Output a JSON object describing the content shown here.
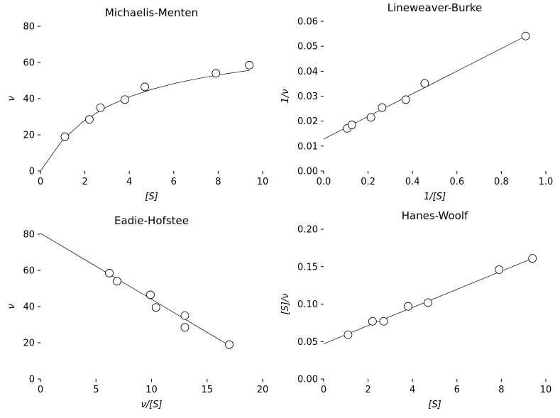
{
  "chart_data": [
    {
      "type": "scatter",
      "title": "Michaelis-Menten",
      "xlabel": "[S]",
      "ylabel": "ν",
      "xlim": [
        0,
        10
      ],
      "ylim": [
        0,
        80
      ],
      "xticks": [
        "0",
        "2",
        "4",
        "6",
        "8",
        "10"
      ],
      "yticks": [
        "0",
        "20",
        "40",
        "60",
        "80"
      ],
      "grid": false,
      "points": {
        "x": [
          1.1,
          2.2,
          2.7,
          3.8,
          4.7,
          7.9,
          9.4
        ],
        "y": [
          19,
          28.5,
          35,
          39.5,
          46.5,
          54,
          58.5
        ]
      },
      "fit": {
        "model": "hyperbola",
        "x": [
          0,
          1,
          2,
          3,
          4,
          5,
          6,
          7,
          8,
          9,
          9.4
        ],
        "y": [
          0,
          17.3,
          28.2,
          35.6,
          41.0,
          45.1,
          48.3,
          50.9,
          53.1,
          54.9,
          55.6
        ]
      }
    },
    {
      "type": "scatter",
      "title": "Lineweaver-Burke",
      "xlabel": "1/[S]",
      "ylabel": "1/ν",
      "xlim": [
        0,
        1.0
      ],
      "ylim": [
        0,
        0.06
      ],
      "xticks": [
        "0.0",
        "0.2",
        "0.4",
        "0.6",
        "0.8",
        "1.0"
      ],
      "yticks": [
        "0.00",
        "0.01",
        "0.02",
        "0.03",
        "0.04",
        "0.05",
        "0.06"
      ],
      "grid": false,
      "points": {
        "x": [
          0.106,
          0.127,
          0.213,
          0.263,
          0.37,
          0.455,
          0.909
        ],
        "y": [
          0.0171,
          0.0185,
          0.0215,
          0.0254,
          0.0286,
          0.0351,
          0.0541
        ]
      },
      "fit": {
        "model": "line",
        "x": [
          0,
          0.91
        ],
        "y": [
          0.0128,
          0.0541
        ]
      }
    },
    {
      "type": "scatter",
      "title": "Eadie-Hofstee",
      "xlabel": "ν/[S]",
      "ylabel": "ν",
      "xlim": [
        0,
        20
      ],
      "ylim": [
        0,
        80
      ],
      "xticks": [
        "0",
        "5",
        "10",
        "15",
        "20"
      ],
      "yticks": [
        "0",
        "20",
        "40",
        "60",
        "80"
      ],
      "grid": false,
      "points": {
        "x": [
          6.2,
          6.9,
          9.9,
          10.4,
          13.0,
          13.0,
          17.0
        ],
        "y": [
          58.5,
          54,
          46.5,
          39.5,
          35,
          28.5,
          19
        ]
      },
      "fit": {
        "model": "line",
        "x": [
          0,
          17.0
        ],
        "y": [
          80.5,
          18.5
        ]
      }
    },
    {
      "type": "scatter",
      "title": "Hanes-Woolf",
      "xlabel": "[S]",
      "ylabel": "[S]/ν",
      "xlim": [
        0,
        10
      ],
      "ylim": [
        0,
        0.2
      ],
      "xticks": [
        "0",
        "2",
        "4",
        "6",
        "8",
        "10"
      ],
      "yticks": [
        "0.00",
        "0.05",
        "0.10",
        "0.15",
        "0.20"
      ],
      "grid": false,
      "points": {
        "x": [
          1.1,
          2.2,
          2.7,
          3.8,
          4.7,
          7.9,
          9.4
        ],
        "y": [
          0.059,
          0.077,
          0.077,
          0.097,
          0.102,
          0.146,
          0.161
        ]
      },
      "fit": {
        "model": "line",
        "x": [
          0,
          9.4
        ],
        "y": [
          0.047,
          0.161
        ]
      }
    }
  ]
}
